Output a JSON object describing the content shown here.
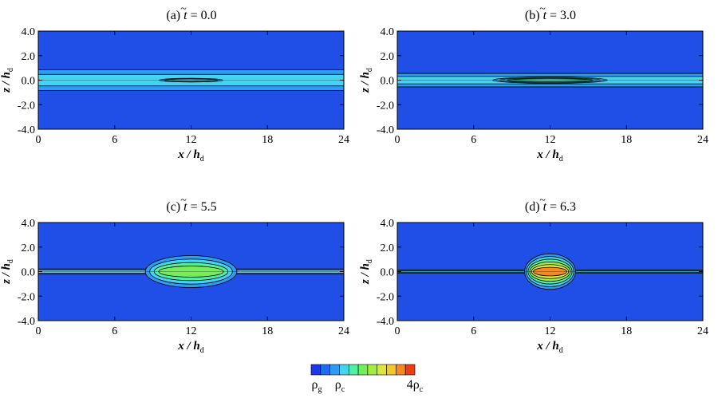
{
  "colors": {
    "background_low": "#1f4fe6",
    "contour_line": "#000000",
    "colorbar": [
      "#1a3ae8",
      "#1f6cf2",
      "#2c9cf5",
      "#43d4f2",
      "#4ff0a0",
      "#75ec5a",
      "#a4ec3e",
      "#d8e93a",
      "#f7c52c",
      "#f78a1e",
      "#ee3d12"
    ]
  },
  "colorbar": {
    "label_low_base": "ρ",
    "label_low_sub": "g",
    "label_mid_base": "ρ",
    "label_mid_sub": "c",
    "label_high_base": "4ρ",
    "label_high_sub": "c"
  },
  "chart_data": [
    {
      "type": "heatmap",
      "title": "(a)  t̃ = 0.0",
      "title_prefix": "(a)",
      "t_symbol": "t",
      "t_value": "= 0.0",
      "xlabel": "x / h",
      "xlabel_sub": "d",
      "ylabel": "z / h",
      "ylabel_sub": "d",
      "xlim": [
        0,
        24
      ],
      "ylim": [
        -4,
        4
      ],
      "xticks": [
        "0",
        "6",
        "12",
        "18",
        "24"
      ],
      "yticks": [
        "4.0",
        "2.0",
        "0.0",
        "-2.0",
        "-4.0"
      ],
      "layer_halfwidth": 0.85,
      "clump_half_x": 2.5,
      "clump_half_z": 0.15,
      "peak_level": 1.05,
      "contour_levels": [
        0.5,
        1.0
      ]
    },
    {
      "type": "heatmap",
      "title": "(b)  t̃ = 3.0",
      "title_prefix": "(b)",
      "t_symbol": "t",
      "t_value": "= 3.0",
      "xlabel": "x / h",
      "xlabel_sub": "d",
      "ylabel": "z / h",
      "ylabel_sub": "d",
      "xlim": [
        0,
        24
      ],
      "ylim": [
        -4,
        4
      ],
      "xticks": [
        "0",
        "6",
        "12",
        "18",
        "24"
      ],
      "yticks": [
        "4.0",
        "2.0",
        "0.0",
        "-2.0",
        "-4.0"
      ],
      "layer_halfwidth": 0.55,
      "clump_half_x": 4.5,
      "clump_half_z": 0.25,
      "peak_level": 1.6,
      "contour_levels": [
        0.5,
        1.0,
        1.4
      ]
    },
    {
      "type": "heatmap",
      "title": "(c)  t̃ = 5.5",
      "title_prefix": "(c)",
      "t_symbol": "t",
      "t_value": "= 5.5",
      "xlabel": "x / h",
      "xlabel_sub": "d",
      "ylabel": "z / h",
      "ylabel_sub": "d",
      "xlim": [
        0,
        24
      ],
      "ylim": [
        -4,
        4
      ],
      "xticks": [
        "0",
        "6",
        "12",
        "18",
        "24"
      ],
      "yticks": [
        "4.0",
        "2.0",
        "0.0",
        "-2.0",
        "-4.0"
      ],
      "layer_halfwidth": 0.22,
      "clump_half_x": 3.6,
      "clump_half_z": 1.3,
      "peak_level": 2.1,
      "contour_levels": [
        0.5,
        1.0,
        1.4,
        1.8
      ]
    },
    {
      "type": "heatmap",
      "title": "(d)  t̃ = 6.3",
      "title_prefix": "(d)",
      "t_symbol": "t",
      "t_value": "= 6.3",
      "xlabel": "x / h",
      "xlabel_sub": "d",
      "ylabel": "z / h",
      "ylabel_sub": "d",
      "xlim": [
        0,
        24
      ],
      "ylim": [
        -4,
        4
      ],
      "xticks": [
        "0",
        "6",
        "12",
        "18",
        "24"
      ],
      "yticks": [
        "4.0",
        "2.0",
        "0.0",
        "-2.0",
        "-4.0"
      ],
      "layer_halfwidth": 0.14,
      "clump_half_x": 2.0,
      "clump_half_z": 1.45,
      "peak_level": 3.8,
      "contour_levels": [
        0.5,
        1.0,
        1.5,
        2.0,
        2.6,
        3.2
      ]
    }
  ]
}
